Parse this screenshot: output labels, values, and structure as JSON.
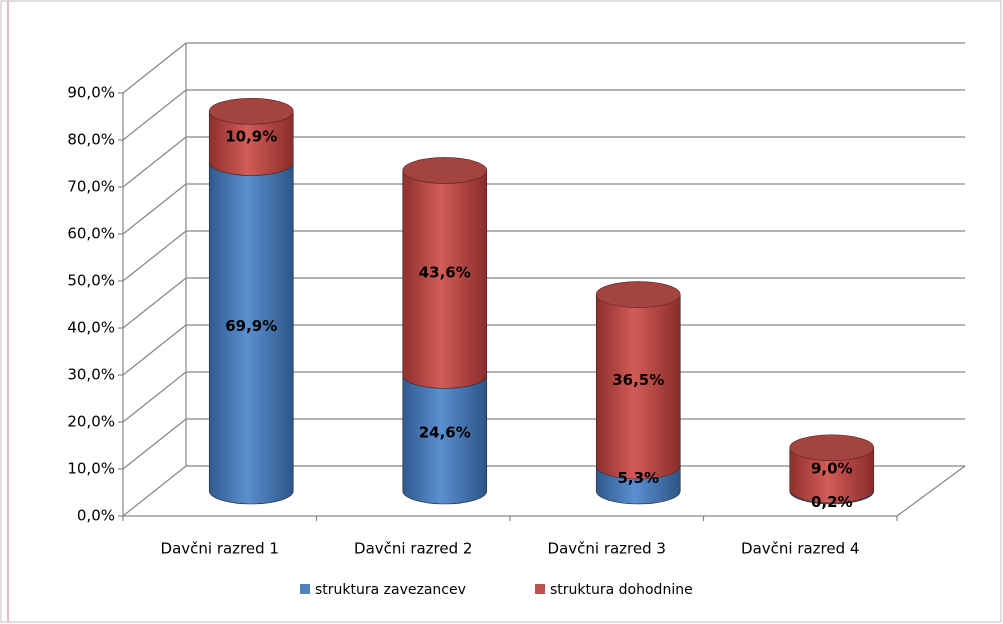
{
  "chart_data": {
    "type": "bar3d-stacked-cylinder",
    "categories": [
      "Davčni razred 1",
      "Davčni razred 2",
      "Davčni razred 3",
      "Davčni razred 4"
    ],
    "series": [
      {
        "name": "struktura zavezancev",
        "color": "#4f81bd",
        "values": [
          69.9,
          24.6,
          5.3,
          0.2
        ],
        "value_labels": [
          "69,9%",
          "24,6%",
          "5,3%",
          "0,2%"
        ]
      },
      {
        "name": "struktura dohodnine",
        "color": "#c0504d",
        "values": [
          10.9,
          43.6,
          36.5,
          9.0
        ],
        "value_labels": [
          "10,9%",
          "43,6%",
          "36,5%",
          "9,0%"
        ]
      }
    ],
    "ylim": [
      0,
      90
    ],
    "yticks": [
      {
        "value": 0,
        "label": "0,0%"
      },
      {
        "value": 10,
        "label": "10,0%"
      },
      {
        "value": 20,
        "label": "20,0%"
      },
      {
        "value": 30,
        "label": "30,0%"
      },
      {
        "value": 40,
        "label": "40,0%"
      },
      {
        "value": 50,
        "label": "50,0%"
      },
      {
        "value": 60,
        "label": "60,0%"
      },
      {
        "value": 70,
        "label": "70,0%"
      },
      {
        "value": 80,
        "label": "80,0%"
      },
      {
        "value": 90,
        "label": "90,0%"
      }
    ],
    "grid": true,
    "legend": "bottom"
  }
}
